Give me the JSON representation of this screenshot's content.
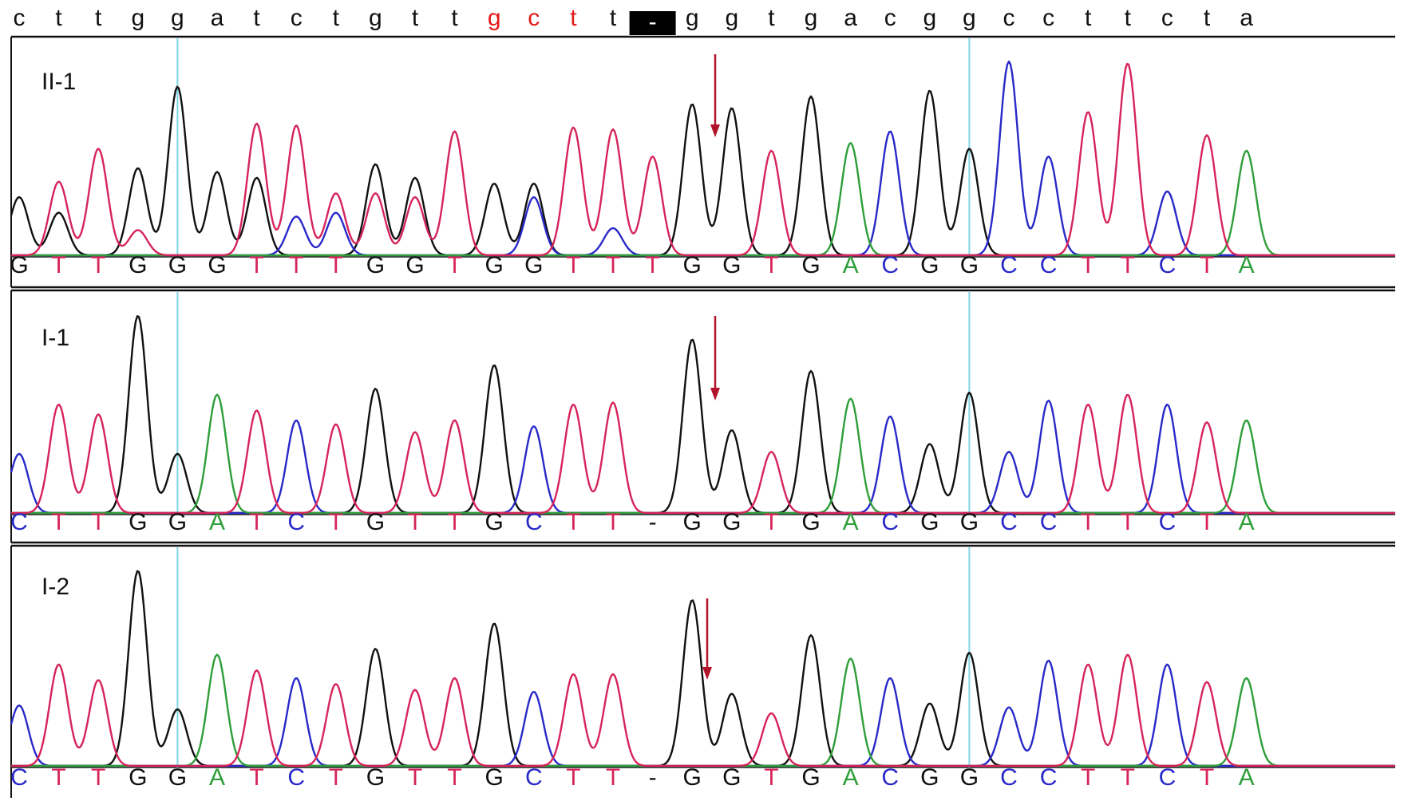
{
  "reference": {
    "bases": [
      "c",
      "t",
      "t",
      "g",
      "g",
      "a",
      "t",
      "c",
      "t",
      "g",
      "t",
      "t",
      "g",
      "c",
      "t",
      "t",
      "-",
      "g",
      "g",
      "t",
      "g",
      "a",
      "c",
      "g",
      "g",
      "c",
      "c",
      "t",
      "t",
      "c",
      "t",
      "a"
    ],
    "highlight_indices": [
      12,
      13,
      14
    ],
    "gap_index": 16
  },
  "colors": {
    "A": "#2e9e3a",
    "C": "#2929c8",
    "G": "#111111",
    "T": "#d6245a",
    "-": "#111111",
    "ref_text": "#111111",
    "ref_highlight": "#e31a1a",
    "arrow": "#b3132a",
    "guide_line": "#7fd6e6",
    "frame": "#111111"
  },
  "icons": {
    "mutation_arrow": "down-arrow-icon",
    "gap_marker": "deletion-box-icon"
  },
  "chart_data": [
    {
      "type": "line",
      "panel": "II-1",
      "calls": [
        "G",
        "T",
        "T",
        "G",
        "G",
        "G",
        "T",
        "T",
        "T",
        "G",
        "G",
        "T",
        "G",
        "G",
        "T",
        "T",
        "T",
        "G",
        "G",
        "T",
        "G",
        "A",
        "C",
        "G",
        "G",
        "C",
        "C",
        "T",
        "T",
        "C",
        "T",
        "A"
      ],
      "peak_heights": [
        0.3,
        0.38,
        0.55,
        0.45,
        0.87,
        0.43,
        0.68,
        0.67,
        0.32,
        0.47,
        0.4,
        0.64,
        0.37,
        0.37,
        0.36,
        0.65,
        0.51,
        0.78,
        0.76,
        0.54,
        0.82,
        0.58,
        0.64,
        0.85,
        0.55,
        1.0,
        0.51,
        0.74,
        0.99,
        0.33,
        0.62,
        0.54
      ],
      "secondary_peaks": [
        {
          "position": 1,
          "base": "G",
          "height": 0.22
        },
        {
          "position": 3,
          "base": "T",
          "height": 0.13
        },
        {
          "position": 6,
          "base": "G",
          "height": 0.4
        },
        {
          "position": 7,
          "base": "C",
          "height": 0.2
        },
        {
          "position": 8,
          "base": "C",
          "height": 0.22
        },
        {
          "position": 9,
          "base": "T",
          "height": 0.32
        },
        {
          "position": 10,
          "base": "T",
          "height": 0.3
        },
        {
          "position": 13,
          "base": "C",
          "height": 0.3
        },
        {
          "position": 14,
          "base": "T",
          "height": 0.3
        },
        {
          "position": 15,
          "base": "C",
          "height": 0.14
        }
      ]
    },
    {
      "type": "line",
      "panel": "I-1",
      "calls": [
        "C",
        "T",
        "T",
        "G",
        "G",
        "A",
        "T",
        "C",
        "T",
        "G",
        "T",
        "T",
        "G",
        "C",
        "T",
        "T",
        "-",
        "G",
        "G",
        "T",
        "G",
        "A",
        "C",
        "G",
        "G",
        "C",
        "C",
        "T",
        "T",
        "C",
        "T",
        "A"
      ],
      "peak_heights": [
        0.3,
        0.55,
        0.5,
        1.0,
        0.3,
        0.6,
        0.52,
        0.47,
        0.45,
        0.63,
        0.41,
        0.47,
        0.75,
        0.44,
        0.55,
        0.56,
        0.0,
        0.88,
        0.42,
        0.31,
        0.72,
        0.58,
        0.49,
        0.35,
        0.61,
        0.31,
        0.57,
        0.55,
        0.6,
        0.55,
        0.46,
        0.47
      ],
      "secondary_peaks": []
    },
    {
      "type": "line",
      "panel": "I-2",
      "calls": [
        "C",
        "T",
        "T",
        "G",
        "G",
        "A",
        "T",
        "C",
        "T",
        "G",
        "T",
        "T",
        "G",
        "C",
        "T",
        "T",
        "-",
        "G",
        "G",
        "T",
        "G",
        "A",
        "C",
        "G",
        "G",
        "C",
        "C",
        "T",
        "T",
        "C",
        "T",
        "A"
      ],
      "peak_heights": [
        0.31,
        0.52,
        0.44,
        1.0,
        0.29,
        0.57,
        0.49,
        0.45,
        0.42,
        0.6,
        0.39,
        0.45,
        0.73,
        0.38,
        0.47,
        0.47,
        0.0,
        0.85,
        0.37,
        0.27,
        0.67,
        0.55,
        0.45,
        0.32,
        0.58,
        0.3,
        0.54,
        0.52,
        0.57,
        0.52,
        0.43,
        0.45
      ],
      "secondary_peaks": []
    }
  ]
}
